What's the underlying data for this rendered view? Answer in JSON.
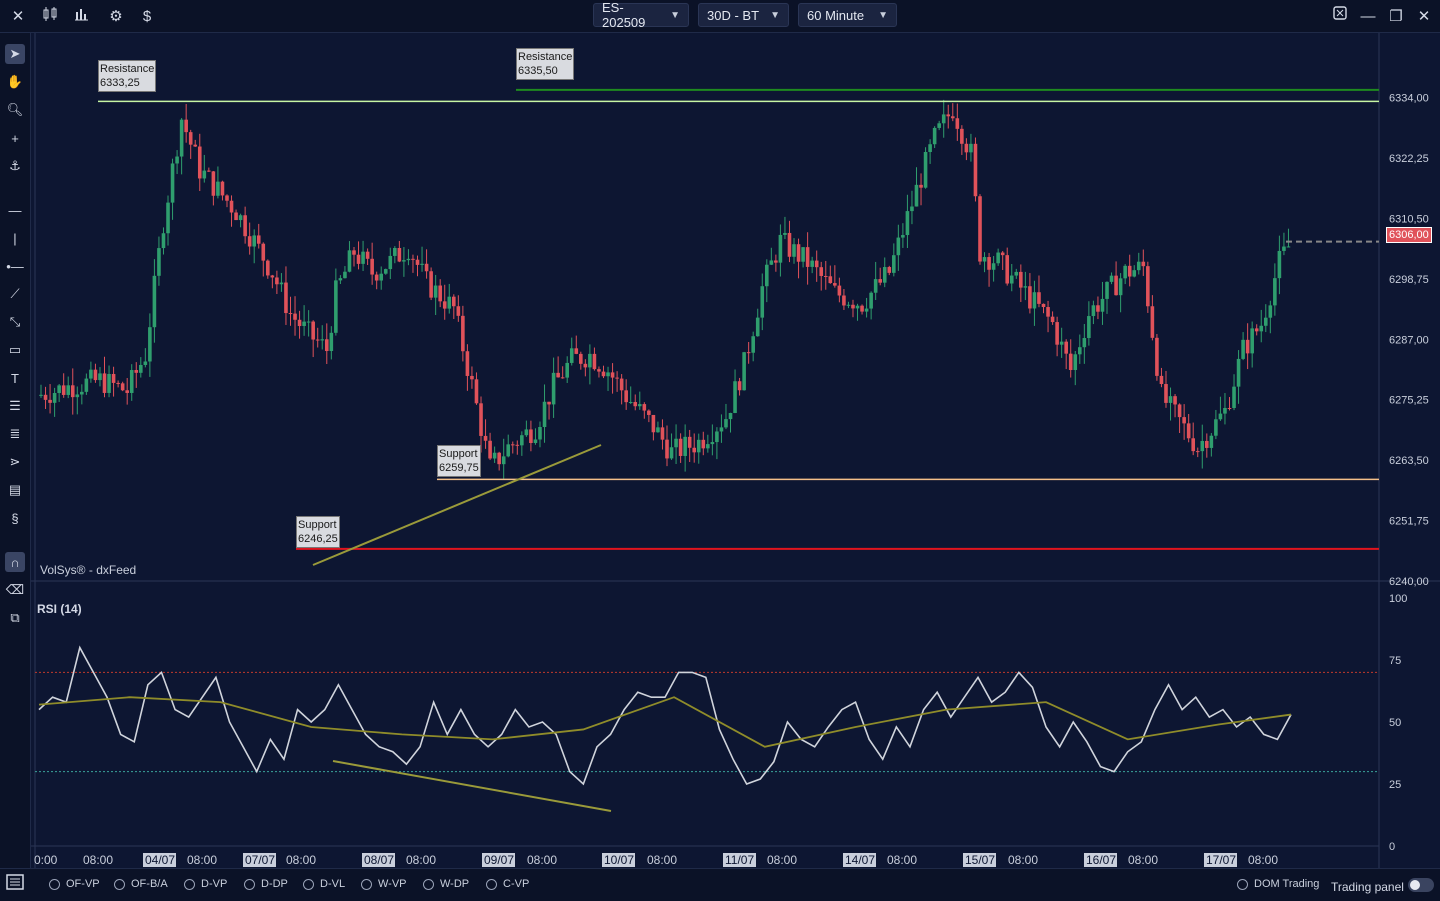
{
  "topbar": {
    "symbol": "ES-202509",
    "period": "30D - BT",
    "interval": "60 Minute",
    "icons": [
      "close-icon",
      "candles-icon",
      "bar-chart-icon",
      "gear-icon",
      "dollar-icon",
      "window-icon",
      "minimize-icon",
      "restore-icon",
      "close-window-icon"
    ]
  },
  "chart": {
    "watermark": "VolSys® - dxFeed",
    "current_price": "6306,00",
    "price_axis": [
      "6334,00",
      "6322,25",
      "6310,50",
      "6298,75",
      "6287,00",
      "6275,25",
      "6263,50",
      "6251,75",
      "6240,00"
    ],
    "annotations": [
      {
        "title": "Resistance",
        "value": "6333,25"
      },
      {
        "title": "Resistance",
        "value": "6335,50"
      },
      {
        "title": "Support",
        "value": "6259,75"
      },
      {
        "title": "Support",
        "value": "6246,25"
      }
    ]
  },
  "rsi": {
    "label": "RSI (14)",
    "axis": [
      "100",
      "75",
      "50",
      "25",
      "0"
    ]
  },
  "time_axis": [
    {
      "t": "0:00",
      "hl": false
    },
    {
      "t": "08:00",
      "hl": false
    },
    {
      "t": "04/07",
      "hl": true
    },
    {
      "t": "08:00",
      "hl": false
    },
    {
      "t": "07/07",
      "hl": true
    },
    {
      "t": "08:00",
      "hl": false
    },
    {
      "t": "08/07",
      "hl": true
    },
    {
      "t": "08:00",
      "hl": false
    },
    {
      "t": "09/07",
      "hl": true
    },
    {
      "t": "08:00",
      "hl": false
    },
    {
      "t": "10/07",
      "hl": true
    },
    {
      "t": "08:00",
      "hl": false
    },
    {
      "t": "11/07",
      "hl": true
    },
    {
      "t": "08:00",
      "hl": false
    },
    {
      "t": "14/07",
      "hl": true
    },
    {
      "t": "08:00",
      "hl": false
    },
    {
      "t": "15/07",
      "hl": true
    },
    {
      "t": "08:00",
      "hl": false
    },
    {
      "t": "16/07",
      "hl": true
    },
    {
      "t": "08:00",
      "hl": false
    },
    {
      "t": "17/07",
      "hl": true
    },
    {
      "t": "08:00",
      "hl": false
    }
  ],
  "bottombar": {
    "options": [
      "OF-VP",
      "OF-B/A",
      "D-VP",
      "D-DP",
      "D-VL",
      "W-VP",
      "W-DP",
      "C-VP"
    ],
    "dom_trading": "DOM Trading",
    "trading_panel": "Trading panel"
  },
  "colors": {
    "background": "#0d1632",
    "bull": "#2f9e6e",
    "bear": "#e0525a",
    "resistance1": "#c6f5a4",
    "resistance2": "#1f8a1f",
    "support1": "#f5c08a",
    "support2": "#e0141e",
    "trendline": "#9a9a3a"
  },
  "chart_data": {
    "type": "candlestick",
    "price_range": [
      6240.0,
      6345.0
    ],
    "rsi_range": [
      0,
      100
    ],
    "rsi_levels": [
      70,
      30
    ],
    "levels": [
      {
        "name": "Resistance",
        "price": 6333.25
      },
      {
        "name": "Resistance",
        "price": 6335.5
      },
      {
        "name": "Support",
        "price": 6259.75
      },
      {
        "name": "Support",
        "price": 6246.25
      }
    ],
    "price_curve": [
      [
        0,
        6276
      ],
      [
        8,
        6278
      ],
      [
        14,
        6279
      ],
      [
        20,
        6277
      ],
      [
        24,
        6284
      ],
      [
        28,
        6310
      ],
      [
        32,
        6330
      ],
      [
        36,
        6320
      ],
      [
        40,
        6316
      ],
      [
        44,
        6312
      ],
      [
        48,
        6306
      ],
      [
        52,
        6300
      ],
      [
        56,
        6292
      ],
      [
        60,
        6288
      ],
      [
        64,
        6285
      ],
      [
        66,
        6296
      ],
      [
        70,
        6304
      ],
      [
        74,
        6300
      ],
      [
        78,
        6302
      ],
      [
        82,
        6305
      ],
      [
        86,
        6298
      ],
      [
        92,
        6293
      ],
      [
        96,
        6278
      ],
      [
        100,
        6262
      ],
      [
        104,
        6266
      ],
      [
        110,
        6270
      ],
      [
        114,
        6278
      ],
      [
        118,
        6283
      ],
      [
        122,
        6284
      ],
      [
        126,
        6281
      ],
      [
        130,
        6276
      ],
      [
        136,
        6270
      ],
      [
        140,
        6265
      ],
      [
        146,
        6267
      ],
      [
        152,
        6272
      ],
      [
        156,
        6282
      ],
      [
        160,
        6297
      ],
      [
        164,
        6306
      ],
      [
        170,
        6302
      ],
      [
        176,
        6296
      ],
      [
        182,
        6294
      ],
      [
        188,
        6300
      ],
      [
        194,
        6316
      ],
      [
        198,
        6326
      ],
      [
        202,
        6332
      ],
      [
        206,
        6323
      ],
      [
        208,
        6304
      ],
      [
        212,
        6302
      ],
      [
        218,
        6296
      ],
      [
        224,
        6290
      ],
      [
        228,
        6281
      ],
      [
        232,
        6292
      ],
      [
        236,
        6296
      ],
      [
        240,
        6300
      ],
      [
        244,
        6301
      ],
      [
        248,
        6276
      ],
      [
        252,
        6271
      ],
      [
        256,
        6266
      ],
      [
        262,
        6273
      ],
      [
        266,
        6285
      ],
      [
        270,
        6290
      ],
      [
        274,
        6302
      ],
      [
        278,
        6308
      ],
      [
        282,
        6302
      ],
      [
        286,
        6314
      ],
      [
        290,
        6326
      ],
      [
        294,
        6332
      ],
      [
        298,
        6328
      ],
      [
        300,
        6333
      ],
      [
        302,
        6320
      ],
      [
        306,
        6312
      ],
      [
        310,
        6300
      ],
      [
        314,
        6282
      ],
      [
        318,
        6273
      ],
      [
        324,
        6270
      ],
      [
        328,
        6277
      ],
      [
        332,
        6279
      ],
      [
        336,
        6276
      ],
      [
        340,
        6286
      ],
      [
        344,
        6277
      ],
      [
        348,
        6283
      ],
      [
        352,
        6298
      ],
      [
        356,
        6304
      ],
      [
        360,
        6300
      ],
      [
        364,
        6294
      ],
      [
        368,
        6304
      ],
      [
        372,
        6298
      ],
      [
        376,
        6300
      ],
      [
        380,
        6306
      ]
    ],
    "rsi_values": [
      [
        0,
        55
      ],
      [
        3,
        60
      ],
      [
        6,
        58
      ],
      [
        9,
        80
      ],
      [
        12,
        70
      ],
      [
        15,
        60
      ],
      [
        18,
        45
      ],
      [
        21,
        42
      ],
      [
        24,
        65
      ],
      [
        27,
        70
      ],
      [
        30,
        55
      ],
      [
        33,
        52
      ],
      [
        36,
        60
      ],
      [
        39,
        68
      ],
      [
        42,
        50
      ],
      [
        45,
        40
      ],
      [
        48,
        30
      ],
      [
        51,
        43
      ],
      [
        54,
        35
      ],
      [
        57,
        55
      ],
      [
        60,
        50
      ],
      [
        63,
        55
      ],
      [
        66,
        65
      ],
      [
        69,
        55
      ],
      [
        72,
        45
      ],
      [
        75,
        40
      ],
      [
        78,
        38
      ],
      [
        81,
        33
      ],
      [
        84,
        40
      ],
      [
        87,
        58
      ],
      [
        90,
        45
      ],
      [
        93,
        55
      ],
      [
        96,
        45
      ],
      [
        99,
        40
      ],
      [
        102,
        45
      ],
      [
        105,
        55
      ],
      [
        108,
        48
      ],
      [
        111,
        50
      ],
      [
        114,
        45
      ],
      [
        117,
        30
      ],
      [
        120,
        25
      ],
      [
        123,
        40
      ],
      [
        126,
        45
      ],
      [
        129,
        55
      ],
      [
        132,
        62
      ],
      [
        135,
        60
      ],
      [
        138,
        60
      ],
      [
        141,
        70
      ],
      [
        144,
        70
      ],
      [
        147,
        68
      ],
      [
        150,
        47
      ],
      [
        153,
        35
      ],
      [
        156,
        25
      ],
      [
        159,
        27
      ],
      [
        162,
        34
      ],
      [
        165,
        50
      ],
      [
        168,
        43
      ],
      [
        171,
        40
      ],
      [
        174,
        48
      ],
      [
        177,
        55
      ],
      [
        180,
        58
      ],
      [
        183,
        43
      ],
      [
        186,
        35
      ],
      [
        189,
        48
      ],
      [
        192,
        40
      ],
      [
        195,
        55
      ],
      [
        198,
        62
      ],
      [
        201,
        52
      ],
      [
        204,
        60
      ],
      [
        207,
        68
      ],
      [
        210,
        58
      ],
      [
        213,
        62
      ],
      [
        216,
        70
      ],
      [
        219,
        64
      ],
      [
        222,
        48
      ],
      [
        225,
        40
      ],
      [
        228,
        50
      ],
      [
        231,
        42
      ],
      [
        234,
        32
      ],
      [
        237,
        30
      ],
      [
        240,
        38
      ],
      [
        243,
        42
      ],
      [
        246,
        55
      ],
      [
        249,
        65
      ],
      [
        252,
        55
      ],
      [
        255,
        60
      ],
      [
        258,
        52
      ],
      [
        261,
        55
      ],
      [
        264,
        48
      ],
      [
        267,
        52
      ],
      [
        270,
        45
      ],
      [
        273,
        43
      ],
      [
        276,
        53
      ]
    ],
    "rsi_ma": [
      [
        0,
        57
      ],
      [
        20,
        60
      ],
      [
        40,
        58
      ],
      [
        60,
        48
      ],
      [
        80,
        45
      ],
      [
        100,
        43
      ],
      [
        120,
        47
      ],
      [
        140,
        60
      ],
      [
        160,
        40
      ],
      [
        180,
        48
      ],
      [
        200,
        55
      ],
      [
        222,
        58
      ],
      [
        240,
        43
      ],
      [
        260,
        49
      ],
      [
        276,
        53
      ]
    ]
  }
}
